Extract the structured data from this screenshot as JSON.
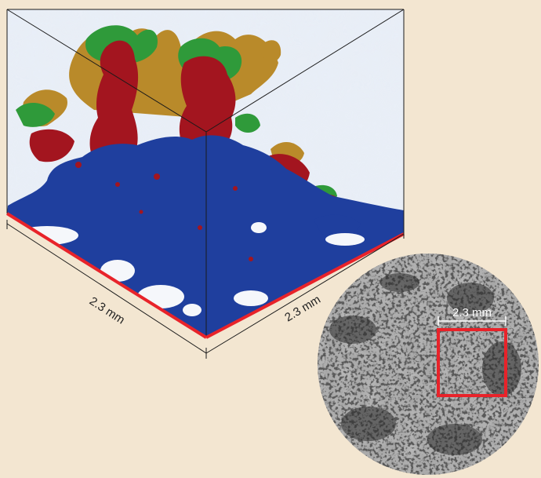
{
  "labels": {
    "cube_left_edge": "2.3 mm",
    "cube_right_edge": "2.3 mm",
    "micrograph_scale": "2.3 mm"
  },
  "colors": {
    "background": "#f3e6d1",
    "cube_edge_highlight": "#e8232a",
    "region_blue": "#1f3f9e",
    "region_red": "#a3151f",
    "region_green": "#2f9a3a",
    "region_gold": "#b98a2a",
    "micrograph_grey": "#a5a5a5",
    "selection_box": "#e8232a"
  }
}
